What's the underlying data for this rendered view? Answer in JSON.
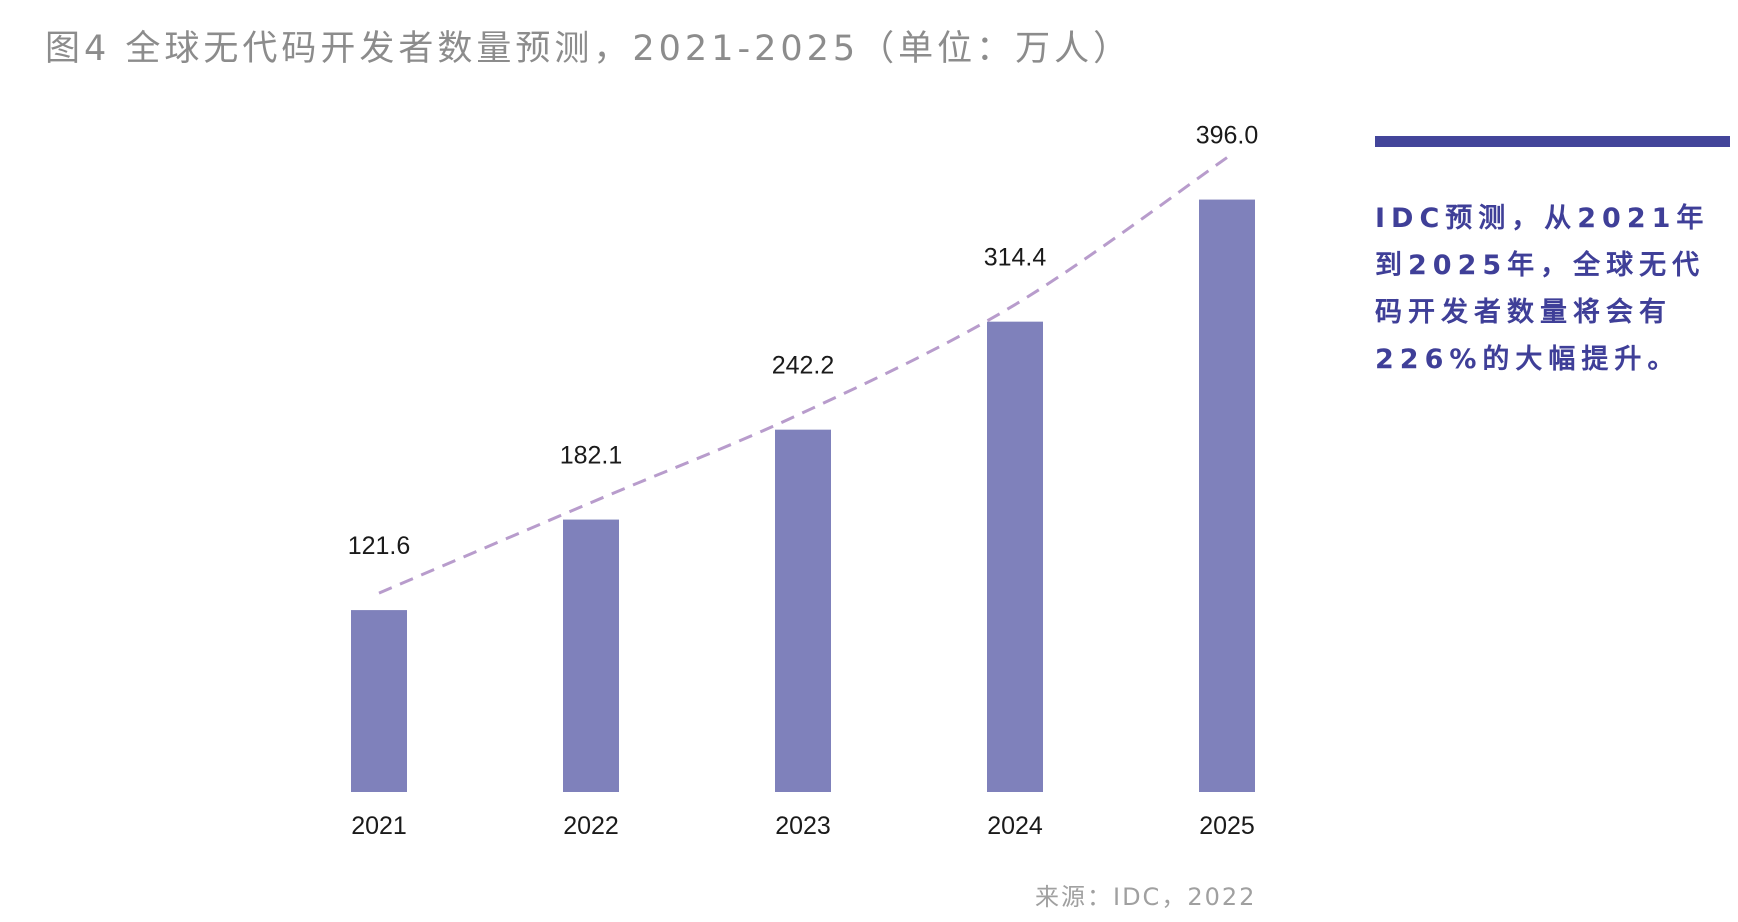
{
  "title": "图4 全球无代码开发者数量预测，2021-2025（单位：万人）",
  "side_note": "IDC预测，从2021年到2025年，全球无代码开发者数量将会有226%的大幅提升。",
  "source": "来源：IDC，2022",
  "colors": {
    "bar": "#7f81bb",
    "trend_line": "#b89ccc",
    "accent": "#43459a",
    "title_gray": "#8c8c8c"
  },
  "chart_data": {
    "type": "bar",
    "title": "图4 全球无代码开发者数量预测，2021-2025（单位：万人）",
    "categories": [
      "2021",
      "2022",
      "2023",
      "2024",
      "2025"
    ],
    "values": [
      121.6,
      182.1,
      242.2,
      314.4,
      396.0
    ],
    "value_labels": [
      "121.6",
      "182.1",
      "242.2",
      "314.4",
      "396.0"
    ],
    "trend_line": "dashed",
    "ylim": [
      0,
      400
    ],
    "grid": false,
    "legend": "none"
  }
}
